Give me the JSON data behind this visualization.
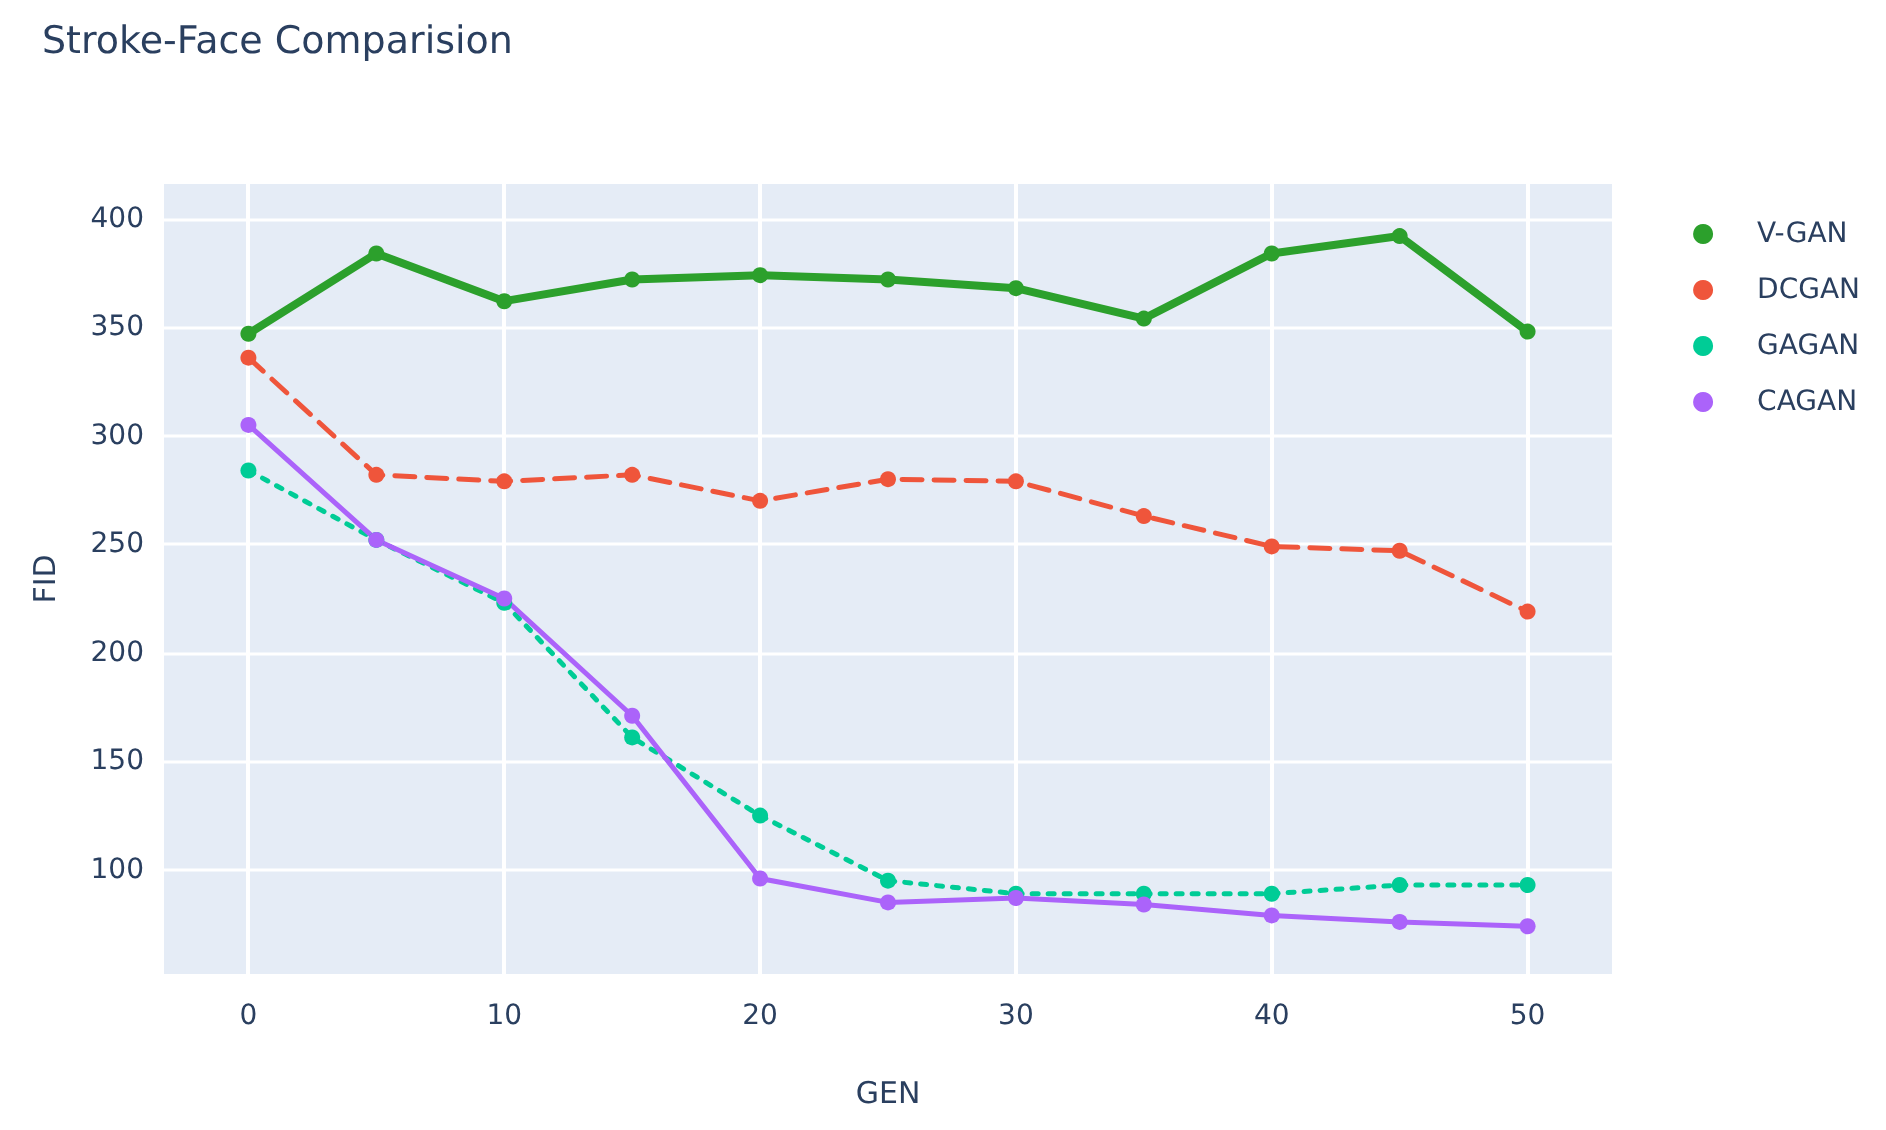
{
  "chart_data": {
    "type": "line",
    "title": "Stroke-Face Comparision",
    "xlabel": "GEN",
    "ylabel": "FID",
    "x": [
      0,
      5,
      10,
      15,
      20,
      25,
      30,
      35,
      40,
      45,
      50
    ],
    "xlim": [
      -3.3,
      53.3
    ],
    "xticks": [
      0,
      10,
      20,
      30,
      40,
      50
    ],
    "ylim": [
      52,
      416
    ],
    "yticks": [
      100,
      150,
      200,
      250,
      300,
      350,
      400
    ],
    "grid": true,
    "legend": "right",
    "marker": "circle",
    "series": [
      {
        "name": "V-GAN",
        "color": "#2ca02c",
        "line_style": "solid",
        "values": [
          347,
          384,
          362,
          372,
          374,
          372,
          368,
          354,
          384,
          392,
          348
        ]
      },
      {
        "name": "DCGAN",
        "color": "#ef553b",
        "line_style": "dashed",
        "values": [
          336,
          282,
          279,
          282,
          270,
          280,
          279,
          263,
          249,
          247,
          219
        ]
      },
      {
        "name": "GAGAN",
        "color": "#00cc96",
        "line_style": "dotted",
        "values": [
          284,
          252,
          223,
          161,
          125,
          95,
          89,
          89,
          89,
          93,
          93
        ]
      },
      {
        "name": "CAGAN",
        "color": "#ab63fa",
        "line_style": "solid",
        "values": [
          305,
          252,
          225,
          171,
          96,
          85,
          87,
          84,
          79,
          76,
          74
        ]
      }
    ]
  }
}
